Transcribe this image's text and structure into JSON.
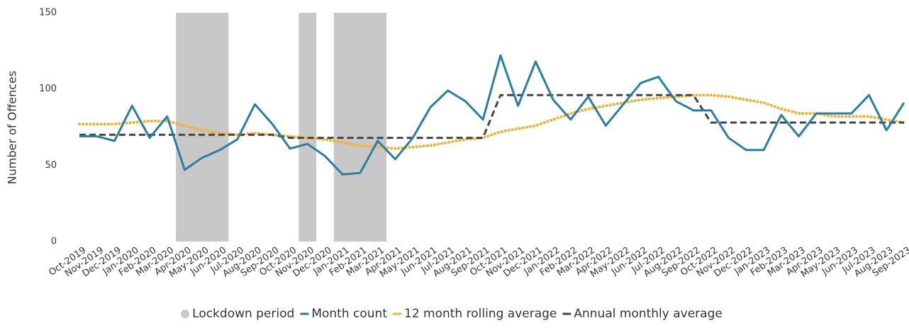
{
  "chart_data": {
    "type": "line",
    "ylabel": "Number of Offences",
    "categories": [
      "Oct-2019",
      "Nov-2019",
      "Dec-2019",
      "Jan-2020",
      "Feb-2020",
      "Mar-2020",
      "Apr-2020",
      "May-2020",
      "Jun-2020",
      "Jul-2020",
      "Aug-2020",
      "Sep-2020",
      "Oct-2020",
      "Nov-2020",
      "Dec-2020",
      "Jan-2021",
      "Feb-2021",
      "Mar-2021",
      "Apr-2021",
      "May-2021",
      "Jun-2021",
      "Jul-2021",
      "Aug-2021",
      "Sep-2021",
      "Oct-2021",
      "Nov-2021",
      "Dec-2021",
      "Jan-2022",
      "Feb-2022",
      "Mar-2022",
      "Apr-2022",
      "May-2022",
      "Jun-2022",
      "Jul-2022",
      "Aug-2022",
      "Sep-2022",
      "Oct-2022",
      "Nov-2022",
      "Dec-2022",
      "Jan-2023",
      "Feb-2023",
      "Mar-2023",
      "Apr-2023",
      "May-2023",
      "Jun-2023",
      "Jul-2023",
      "Aug-2023",
      "Sep-2023"
    ],
    "lockdown": {
      "name": "Lockdown period",
      "color": "#c8c8c8",
      "periods": [
        {
          "start": "Apr-2020",
          "end": "Jun-2020"
        },
        {
          "start": "Nov-2020",
          "end": "Nov-2020"
        },
        {
          "start": "Jan-2021",
          "end": "Mar-2021"
        }
      ]
    },
    "series": [
      {
        "name": "Month count",
        "color": "#2a7fa0",
        "style": "solid",
        "values": [
          69,
          69,
          66,
          89,
          68,
          82,
          47,
          55,
          60,
          67,
          90,
          77,
          61,
          64,
          56,
          44,
          45,
          66,
          54,
          68,
          88,
          99,
          92,
          80,
          122,
          89,
          118,
          93,
          80,
          95,
          76,
          90,
          104,
          108,
          92,
          86,
          86,
          68,
          60,
          60,
          83,
          69,
          84,
          84,
          84,
          96,
          73,
          91
        ]
      },
      {
        "name": "12 month rolling average",
        "color": "#f2b134",
        "style": "dotted",
        "values": [
          77,
          77,
          77,
          78,
          79,
          79,
          76,
          73,
          71,
          70,
          71,
          70,
          69,
          68,
          67,
          65,
          63,
          62,
          61,
          62,
          63,
          65,
          67,
          68,
          72,
          74,
          76,
          80,
          84,
          87,
          89,
          91,
          93,
          94,
          95,
          96,
          96,
          95,
          93,
          91,
          87,
          84,
          84,
          82,
          82,
          82,
          80,
          78
        ]
      },
      {
        "name": "Annual monthly average",
        "color": "#444444",
        "style": "dashed",
        "values": [
          70,
          70,
          70,
          70,
          70,
          70,
          70,
          70,
          70,
          70,
          70,
          70,
          68,
          68,
          68,
          68,
          68,
          68,
          68,
          68,
          68,
          68,
          68,
          68,
          96,
          96,
          96,
          96,
          96,
          96,
          96,
          96,
          96,
          96,
          96,
          96,
          78,
          78,
          78,
          78,
          78,
          78,
          78,
          78,
          78,
          78,
          78,
          78
        ]
      }
    ],
    "ylim": [
      0,
      150
    ],
    "yticks": [
      0,
      50,
      100,
      150
    ],
    "grid": false,
    "legend": "bottom"
  }
}
